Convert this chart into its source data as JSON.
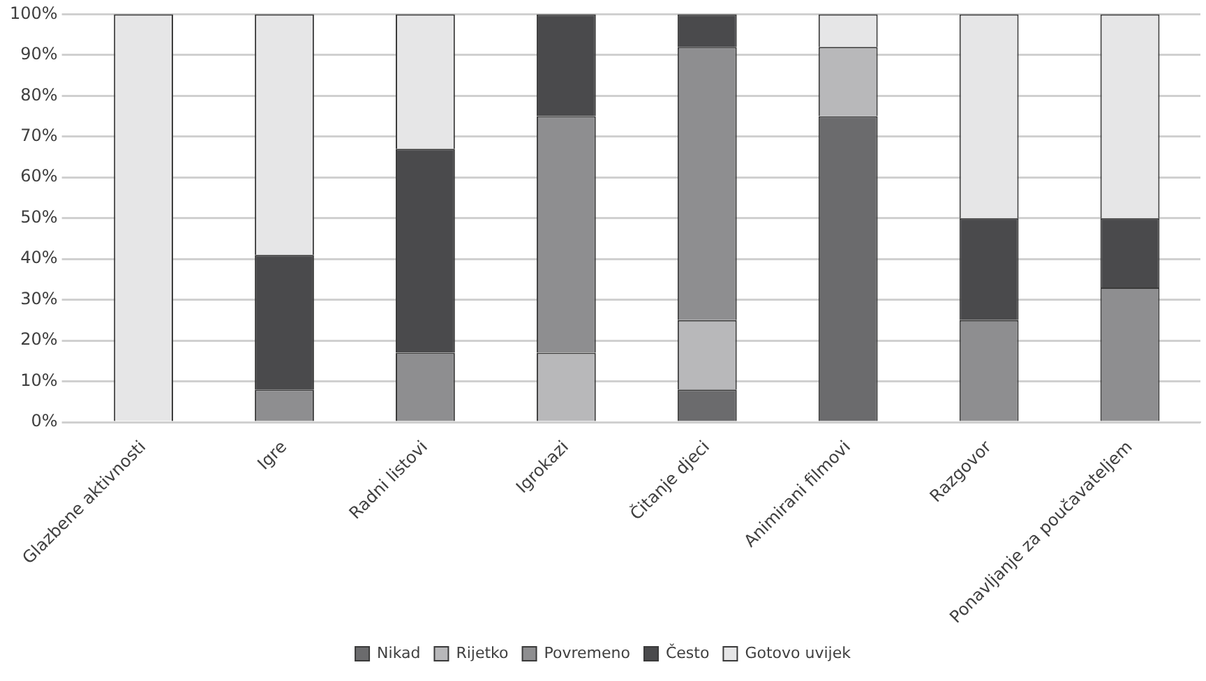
{
  "chart_data": {
    "type": "bar",
    "stacked": true,
    "categories": [
      "Glazbene aktivnosti",
      "Igre",
      "Radni listovi",
      "Igrokazi",
      "Čitanje djeci",
      "Animirani filmovi",
      "Razgovor",
      "Ponavljanje za poučavateljem"
    ],
    "series": [
      {
        "name": "Nikad",
        "color": "#6b6b6d",
        "values": [
          0,
          0,
          0,
          0,
          8,
          75,
          0,
          0
        ]
      },
      {
        "name": "Rijetko",
        "color": "#b8b8ba",
        "values": [
          0,
          0,
          0,
          17,
          17,
          17,
          0,
          0
        ]
      },
      {
        "name": "Povremeno",
        "color": "#8e8e90",
        "values": [
          0,
          8,
          17,
          58,
          67,
          0,
          25,
          33
        ]
      },
      {
        "name": "Često",
        "color": "#4a4a4c",
        "values": [
          0,
          33,
          50,
          25,
          8,
          0,
          25,
          17
        ]
      },
      {
        "name": "Gotovo uvijek",
        "color": "#e6e6e7",
        "values": [
          100,
          59,
          33,
          0,
          0,
          8,
          50,
          50
        ]
      }
    ],
    "ylim": [
      0,
      100
    ],
    "yticks": [
      {
        "value": 0,
        "label": "0%"
      },
      {
        "value": 10,
        "label": "10%"
      },
      {
        "value": 20,
        "label": "20%"
      },
      {
        "value": 30,
        "label": "30%"
      },
      {
        "value": 40,
        "label": "40%"
      },
      {
        "value": 50,
        "label": "50%"
      },
      {
        "value": 60,
        "label": "60%"
      },
      {
        "value": 70,
        "label": "70%"
      },
      {
        "value": 80,
        "label": "80%"
      },
      {
        "value": 90,
        "label": "90%"
      },
      {
        "value": 100,
        "label": "100%"
      }
    ],
    "grid": "y",
    "legend": "bottom"
  }
}
